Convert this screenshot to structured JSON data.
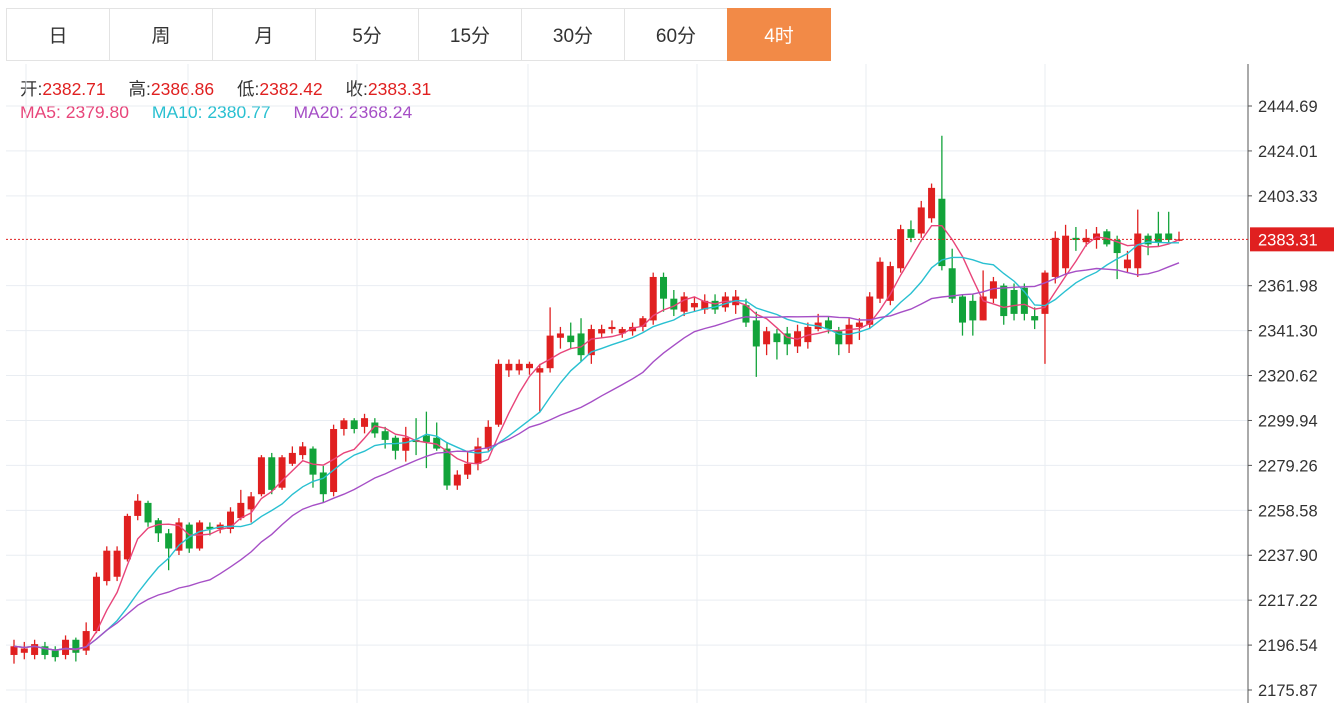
{
  "tabs": [
    {
      "label": "日",
      "active": false
    },
    {
      "label": "周",
      "active": false
    },
    {
      "label": "月",
      "active": false
    },
    {
      "label": "5分",
      "active": false
    },
    {
      "label": "15分",
      "active": false
    },
    {
      "label": "30分",
      "active": false
    },
    {
      "label": "60分",
      "active": false
    },
    {
      "label": "4时",
      "active": true
    }
  ],
  "ohlc_info": {
    "open_label": "开:",
    "open": "2382.71",
    "high_label": "高:",
    "high": "2386.86",
    "low_label": "低:",
    "low": "2382.42",
    "close_label": "收:",
    "close": "2383.31"
  },
  "ma_info": {
    "ma5_label": "MA5:",
    "ma5": "2379.80",
    "ma10_label": "MA10:",
    "ma10": "2380.77",
    "ma20_label": "MA20:",
    "ma20": "2368.24"
  },
  "colors": {
    "up": "#e02020",
    "down": "#12a33a",
    "ma5": "#e8457a",
    "ma10": "#29c0d1",
    "ma20": "#a64fc6",
    "tab_active": "#f28a47"
  },
  "chart_data": {
    "type": "candlestick",
    "y_ticks": [
      "2444.69",
      "2424.01",
      "2403.33",
      "2383.31",
      "2361.98",
      "2341.30",
      "2320.62",
      "2299.94",
      "2279.26",
      "2258.58",
      "2237.90",
      "2217.22",
      "2196.54",
      "2175.87"
    ],
    "current_price": 2383.31,
    "ylim": [
      2172,
      2452
    ],
    "candles": [
      [
        2192,
        2196,
        2199,
        2188
      ],
      [
        2193,
        2195,
        2198,
        2190
      ],
      [
        2192,
        2197,
        2199,
        2190
      ],
      [
        2196,
        2192,
        2198,
        2190
      ],
      [
        2194,
        2191,
        2196,
        2189
      ],
      [
        2192,
        2199,
        2201,
        2190
      ],
      [
        2199,
        2193,
        2200,
        2189
      ],
      [
        2194,
        2203,
        2207,
        2192
      ],
      [
        2203,
        2228,
        2230,
        2202
      ],
      [
        2226,
        2240,
        2242,
        2224
      ],
      [
        2228,
        2240,
        2242,
        2226
      ],
      [
        2236,
        2256,
        2257,
        2235
      ],
      [
        2256,
        2263,
        2266,
        2254
      ],
      [
        2262,
        2253,
        2263,
        2251
      ],
      [
        2254,
        2248,
        2255,
        2244
      ],
      [
        2248,
        2241,
        2250,
        2231
      ],
      [
        2240,
        2253,
        2255,
        2238
      ],
      [
        2252,
        2241,
        2253,
        2239
      ],
      [
        2241,
        2253,
        2254,
        2240
      ],
      [
        2251,
        2250,
        2253,
        2247
      ],
      [
        2250,
        2252,
        2253,
        2248
      ],
      [
        2250,
        2258,
        2260,
        2248
      ],
      [
        2255,
        2262,
        2268,
        2254
      ],
      [
        2259,
        2265,
        2267,
        2253
      ],
      [
        2266,
        2283,
        2284,
        2265
      ],
      [
        2283,
        2268,
        2285,
        2266
      ],
      [
        2269,
        2283,
        2284,
        2268
      ],
      [
        2280,
        2285,
        2288,
        2279
      ],
      [
        2284,
        2288,
        2290,
        2282
      ],
      [
        2287,
        2275,
        2288,
        2269
      ],
      [
        2276,
        2266,
        2279,
        2262
      ],
      [
        2267,
        2296,
        2298,
        2265
      ],
      [
        2296,
        2300,
        2301,
        2293
      ],
      [
        2300,
        2296,
        2301,
        2294
      ],
      [
        2297,
        2301,
        2303,
        2294
      ],
      [
        2299,
        2294,
        2301,
        2292
      ],
      [
        2295,
        2291,
        2297,
        2287
      ],
      [
        2292,
        2286,
        2293,
        2282
      ],
      [
        2286,
        2292,
        2297,
        2281
      ],
      [
        2291,
        2290,
        2301,
        2284
      ],
      [
        2293,
        2290,
        2304,
        2278
      ],
      [
        2292,
        2287,
        2299,
        2286
      ],
      [
        2287,
        2270,
        2290,
        2268
      ],
      [
        2270,
        2275,
        2277,
        2268
      ],
      [
        2275,
        2280,
        2286,
        2273
      ],
      [
        2280,
        2288,
        2292,
        2277
      ],
      [
        2287,
        2297,
        2300,
        2286
      ],
      [
        2298,
        2326,
        2328,
        2297
      ],
      [
        2323,
        2326,
        2328,
        2320
      ],
      [
        2323,
        2326,
        2328,
        2321
      ],
      [
        2324,
        2326,
        2327,
        2321
      ],
      [
        2322,
        2324,
        2326,
        2304
      ],
      [
        2324,
        2339,
        2352,
        2322
      ],
      [
        2338,
        2340,
        2343,
        2333
      ],
      [
        2339,
        2336,
        2345,
        2333
      ],
      [
        2340,
        2330,
        2347,
        2327
      ],
      [
        2330,
        2342,
        2344,
        2326
      ],
      [
        2340,
        2342,
        2344,
        2338
      ],
      [
        2342,
        2343,
        2346,
        2340
      ],
      [
        2340,
        2342,
        2343,
        2338
      ],
      [
        2341,
        2343,
        2345,
        2339
      ],
      [
        2343,
        2347,
        2348,
        2341
      ],
      [
        2346,
        2366,
        2368,
        2344
      ],
      [
        2366,
        2356,
        2368,
        2350
      ],
      [
        2356,
        2351,
        2360,
        2348
      ],
      [
        2350,
        2357,
        2359,
        2348
      ],
      [
        2352,
        2354,
        2357,
        2350
      ],
      [
        2351,
        2355,
        2358,
        2349
      ],
      [
        2355,
        2351,
        2358,
        2349
      ],
      [
        2352,
        2357,
        2359,
        2350
      ],
      [
        2353,
        2357,
        2360,
        2349
      ],
      [
        2353,
        2345,
        2356,
        2343
      ],
      [
        2346,
        2334,
        2350,
        2320
      ],
      [
        2335,
        2341,
        2343,
        2330
      ],
      [
        2340,
        2336,
        2342,
        2328
      ],
      [
        2340,
        2335,
        2343,
        2330
      ],
      [
        2334,
        2341,
        2344,
        2331
      ],
      [
        2336,
        2343,
        2345,
        2333
      ],
      [
        2342,
        2345,
        2349,
        2341
      ],
      [
        2346,
        2342,
        2348,
        2340
      ],
      [
        2341,
        2335,
        2343,
        2330
      ],
      [
        2335,
        2344,
        2347,
        2331
      ],
      [
        2343,
        2345,
        2347,
        2337
      ],
      [
        2344,
        2357,
        2359,
        2342
      ],
      [
        2356,
        2373,
        2375,
        2354
      ],
      [
        2355,
        2371,
        2373,
        2353
      ],
      [
        2370,
        2388,
        2390,
        2368
      ],
      [
        2388,
        2384,
        2392,
        2382
      ],
      [
        2386,
        2398,
        2401,
        2384
      ],
      [
        2393,
        2407,
        2409,
        2391
      ],
      [
        2402,
        2371,
        2431,
        2369
      ],
      [
        2370,
        2356,
        2379,
        2354
      ],
      [
        2357,
        2345,
        2358,
        2339
      ],
      [
        2355,
        2346,
        2358,
        2339
      ],
      [
        2346,
        2357,
        2369,
        2346
      ],
      [
        2356,
        2364,
        2366,
        2354
      ],
      [
        2362,
        2348,
        2363,
        2344
      ],
      [
        2360,
        2349,
        2363,
        2346
      ],
      [
        2361,
        2349,
        2363,
        2346
      ],
      [
        2348,
        2346,
        2352,
        2342
      ],
      [
        2349,
        2368,
        2369,
        2326
      ],
      [
        2366,
        2384,
        2387,
        2363
      ],
      [
        2370,
        2385,
        2390,
        2367
      ],
      [
        2384,
        2383,
        2389,
        2378
      ],
      [
        2382,
        2384,
        2388,
        2380
      ],
      [
        2383,
        2386,
        2389,
        2379
      ],
      [
        2387,
        2381,
        2388,
        2380
      ],
      [
        2383,
        2377,
        2385,
        2365
      ],
      [
        2370,
        2374,
        2378,
        2368
      ],
      [
        2370,
        2386,
        2397,
        2366
      ],
      [
        2385,
        2381,
        2386,
        2376
      ],
      [
        2386,
        2382,
        2396,
        2380
      ],
      [
        2386,
        2383,
        2396,
        2381
      ],
      [
        2382.71,
        2383.31,
        2386.86,
        2382.42
      ]
    ]
  }
}
